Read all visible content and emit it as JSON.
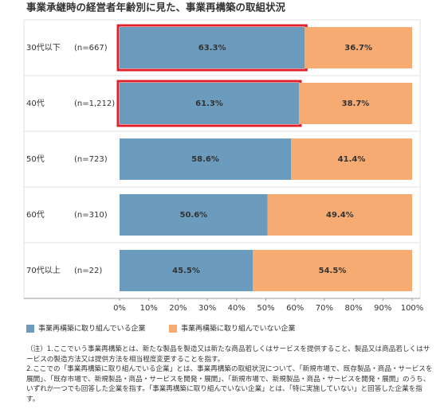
{
  "chart_data": {
    "type": "stacked-bar-horizontal",
    "title": "事業承継時の経営者年齢別に見た、事業再構築の取組状況",
    "categories": [
      "30代以下",
      "40代",
      "50代",
      "60代",
      "70代以上"
    ],
    "category_notes": [
      "(n=667)",
      "(n=1,212)",
      "(n=723)",
      "(n=310)",
      "(n=22)"
    ],
    "series": [
      {
        "name": "事業再構築に取り組んでいる企業",
        "color": "#6b9bbd",
        "values": [
          63.3,
          61.3,
          58.6,
          50.6,
          45.5
        ],
        "value_labels": [
          "63.3%",
          "61.3%",
          "58.6%",
          "50.6%",
          "45.5%"
        ]
      },
      {
        "name": "事業再構築に取り組んでいない企業",
        "color": "#f5ab72",
        "values": [
          36.7,
          38.7,
          41.4,
          49.4,
          54.5
        ],
        "value_labels": [
          "36.7%",
          "38.7%",
          "41.4%",
          "49.4%",
          "54.5%"
        ]
      }
    ],
    "xlim": [
      0,
      100
    ],
    "xticks": [
      {
        "value": 0,
        "label": "0%"
      },
      {
        "value": 10,
        "label": "10%"
      },
      {
        "value": 20,
        "label": "20%"
      },
      {
        "value": 30,
        "label": "30%"
      },
      {
        "value": 40,
        "label": "40%"
      },
      {
        "value": 50,
        "label": "50%"
      },
      {
        "value": 60,
        "label": "60%"
      },
      {
        "value": 70,
        "label": "70%"
      },
      {
        "value": 80,
        "label": "80%"
      },
      {
        "value": 90,
        "label": "90%"
      },
      {
        "value": 100,
        "label": "100%"
      }
    ],
    "highlight_rows": [
      0,
      1
    ],
    "highlight_color": "#e0202a",
    "notes": [
      "（注）1.ここでいう事業再構築とは、新たな製品を製造又は新たな商品若しくはサービスを提供すること、製品又は商品若しくはサービスの製造方法又は提供方法を相当程度変更することを指す。",
      "2.ここでの「事業再構築に取り組んでいる企業」とは、事業再構築の取組状況について、「新規市場で、既存製品・商品・サービスを展開」、「既存市場で、新規製品・商品・サービスを開発・展開」、「新規市場で、新規製品・商品・サービスを開発・展開」のうち、いずれか一つでも回答した企業を指す。「事業再構築に取り組んでいない企業」とは、「特に実施していない」と回答した企業を指す。"
    ]
  }
}
